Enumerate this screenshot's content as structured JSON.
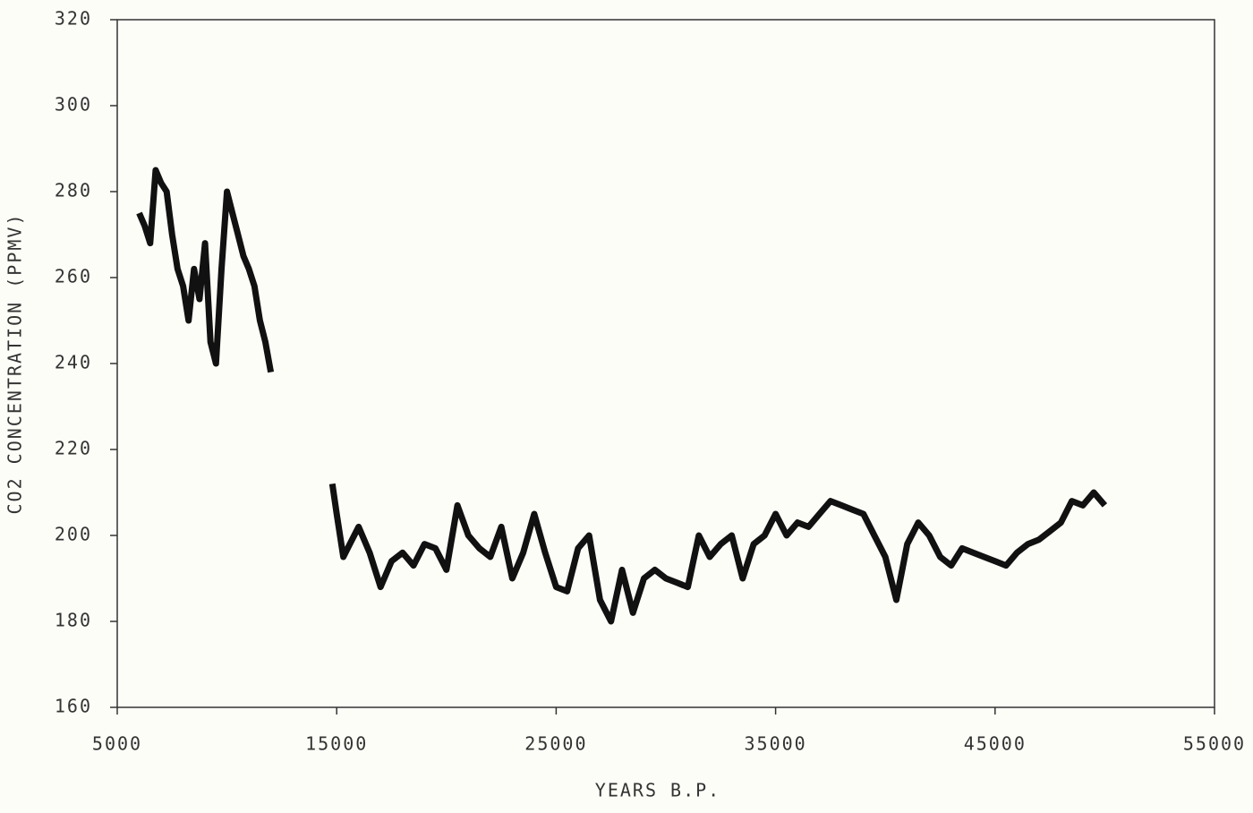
{
  "chart_data": {
    "type": "line",
    "xlabel": "YEARS B.P.",
    "ylabel": "CO2 CONCENTRATION (PPMV)",
    "x": [
      6000,
      6250,
      6500,
      6750,
      7000,
      7250,
      7500,
      7750,
      8000,
      8250,
      8500,
      8750,
      9000,
      9250,
      9500,
      9750,
      10000,
      10250,
      10500,
      10750,
      11000,
      11250,
      11500,
      11750,
      12000,
      13000,
      14800,
      15000,
      15300,
      15600,
      16000,
      16500,
      17000,
      17500,
      18000,
      18500,
      19000,
      19500,
      20000,
      20500,
      21000,
      21500,
      22000,
      22500,
      23000,
      23500,
      24000,
      24500,
      25000,
      25500,
      26000,
      26500,
      27000,
      27500,
      28000,
      28500,
      29000,
      29500,
      30000,
      30500,
      31000,
      31500,
      32000,
      32500,
      33000,
      33500,
      34000,
      34500,
      35000,
      35500,
      36000,
      36500,
      37000,
      37500,
      38000,
      38500,
      39000,
      39500,
      40000,
      40500,
      41000,
      41500,
      42000,
      42500,
      43000,
      43500,
      44000,
      44500,
      45000,
      45500,
      46000,
      46500,
      47000,
      47500,
      48000,
      48500,
      49000,
      49500,
      50000
    ],
    "series": [
      {
        "color": "#111111",
        "values": [
          275,
          272,
          268,
          285,
          282,
          280,
          270,
          262,
          258,
          250,
          262,
          255,
          268,
          245,
          240,
          262,
          280,
          275,
          270,
          265,
          262,
          258,
          250,
          245,
          238,
          null,
          212,
          205,
          195,
          198,
          202,
          196,
          188,
          194,
          196,
          193,
          198,
          197,
          192,
          207,
          200,
          197,
          195,
          202,
          190,
          196,
          205,
          196,
          188,
          187,
          197,
          200,
          185,
          180,
          192,
          182,
          190,
          192,
          190,
          189,
          188,
          200,
          195,
          198,
          200,
          190,
          198,
          200,
          205,
          200,
          203,
          202,
          205,
          208,
          207,
          206,
          205,
          200,
          195,
          185,
          198,
          203,
          200,
          195,
          193,
          197,
          196,
          195,
          194,
          193,
          196,
          198,
          199,
          201,
          203,
          208,
          207,
          210,
          207
        ]
      }
    ],
    "xlim": [
      5000,
      55000
    ],
    "xticks": [
      5000,
      15000,
      25000,
      35000,
      45000,
      55000
    ],
    "ylim": [
      160,
      320
    ],
    "yticks": [
      160,
      180,
      200,
      220,
      240,
      260,
      280,
      300,
      320
    ]
  }
}
